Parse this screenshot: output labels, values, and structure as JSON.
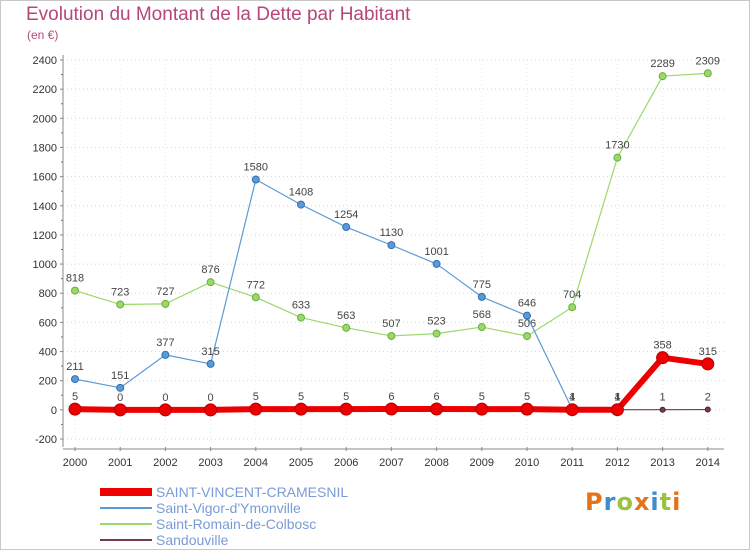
{
  "header": {
    "title": "Evolution du Montant de la Dette par Habitant",
    "unit": "(en €)"
  },
  "logo": {
    "letters": [
      "P",
      "r",
      "o",
      "x",
      "i",
      "t",
      "i"
    ],
    "colors": [
      "#e5731a",
      "#3b8fd0",
      "#9bc43c",
      "#e5731a",
      "#3b8fd0",
      "#9bc43c",
      "#e5731a"
    ]
  },
  "chart_data": {
    "type": "line",
    "title": "Evolution du Montant de la Dette par Habitant",
    "ylabel": "(en €)",
    "xlabel": "",
    "ylim": [
      -200,
      2400
    ],
    "yticks": [
      -200,
      0,
      200,
      400,
      600,
      800,
      1000,
      1200,
      1400,
      1600,
      1800,
      2000,
      2200,
      2400
    ],
    "x": [
      "2000",
      "2001",
      "2002",
      "2003",
      "2004",
      "2005",
      "2006",
      "2007",
      "2008",
      "2009",
      "2010",
      "2011",
      "2012",
      "2013",
      "2014"
    ],
    "grid": true,
    "legend_position": "bottom-left",
    "series": [
      {
        "name": "Saint-Romain-de-Colbosc",
        "color": "#9bd86a",
        "values": [
          818,
          723,
          727,
          876,
          772,
          633,
          563,
          507,
          523,
          568,
          506,
          704,
          1730,
          2289,
          2309
        ]
      },
      {
        "name": "Saint-Vigor-d'Ymonville",
        "color": "#5b9bd5",
        "values": [
          211,
          151,
          377,
          315,
          1580,
          1408,
          1254,
          1130,
          1001,
          775,
          646,
          4,
          4,
          null,
          null
        ]
      },
      {
        "name": "Sandouville",
        "color": "#7b3a4a",
        "values": [
          null,
          null,
          null,
          null,
          null,
          null,
          null,
          null,
          null,
          null,
          null,
          null,
          1,
          1,
          2
        ]
      },
      {
        "name": "SAINT-VINCENT-CRAMESNIL",
        "color": "#ee0000",
        "values": [
          5,
          0,
          0,
          0,
          5,
          5,
          5,
          6,
          6,
          5,
          5,
          1,
          1,
          358,
          315
        ]
      }
    ],
    "labels": [
      {
        "series": 0,
        "values": [
          818,
          723,
          727,
          876,
          772,
          633,
          563,
          507,
          523,
          568,
          506,
          704,
          1730,
          2289,
          2309
        ]
      },
      {
        "series": 1,
        "values": [
          211,
          151,
          377,
          315,
          1580,
          1408,
          1254,
          1130,
          1001,
          775,
          646,
          4,
          4,
          null,
          null
        ]
      },
      {
        "series": 2,
        "values": [
          null,
          null,
          null,
          null,
          null,
          null,
          null,
          null,
          null,
          null,
          null,
          null,
          1,
          1,
          2
        ]
      },
      {
        "series": 3,
        "values": [
          5,
          0,
          0,
          0,
          5,
          5,
          5,
          6,
          6,
          5,
          5,
          1,
          1,
          358,
          315
        ]
      }
    ],
    "legend_order": [
      3,
      1,
      0,
      2
    ]
  }
}
